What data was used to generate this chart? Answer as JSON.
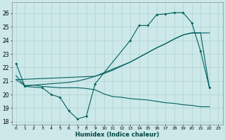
{
  "xlabel": "Humidex (Indice chaleur)",
  "bg_color": "#cce8e8",
  "grid_color": "#b0d0d0",
  "line_color": "#006060",
  "xlim": [
    -0.5,
    23.5
  ],
  "ylim": [
    17.8,
    26.8
  ],
  "yticks": [
    18,
    19,
    20,
    21,
    22,
    23,
    24,
    25,
    26
  ],
  "xticks": [
    0,
    1,
    2,
    3,
    4,
    5,
    6,
    7,
    8,
    9,
    10,
    11,
    12,
    13,
    14,
    15,
    16,
    17,
    18,
    19,
    20,
    21,
    22,
    23
  ],
  "line1_x": [
    0,
    1,
    3,
    4,
    5,
    6,
    7,
    8,
    9,
    13,
    14,
    15,
    16,
    17,
    18,
    19,
    20,
    21,
    22
  ],
  "line1_y": [
    22.3,
    20.6,
    20.5,
    20.0,
    19.8,
    18.8,
    18.2,
    18.4,
    20.8,
    24.0,
    25.1,
    25.1,
    25.9,
    25.95,
    26.05,
    26.05,
    25.3,
    23.2,
    20.5
  ],
  "line2_x": [
    0,
    1,
    2,
    3,
    4,
    5,
    6,
    7,
    8,
    9,
    10,
    11,
    12,
    13,
    14,
    15,
    16,
    17,
    18,
    19,
    20,
    21,
    22
  ],
  "line2_y": [
    21.1,
    20.65,
    20.7,
    20.75,
    20.8,
    20.85,
    20.9,
    21.0,
    21.15,
    21.35,
    21.55,
    21.8,
    22.1,
    22.4,
    22.75,
    23.1,
    23.45,
    23.75,
    24.1,
    24.4,
    24.55,
    24.55,
    24.55
  ],
  "line3_x": [
    0,
    1,
    2,
    3,
    4,
    5,
    6,
    7,
    8,
    9,
    10,
    11,
    12,
    13,
    14,
    15,
    16,
    17,
    18,
    19,
    20,
    21,
    22
  ],
  "line3_y": [
    21.4,
    20.65,
    20.7,
    20.6,
    20.55,
    20.5,
    20.5,
    20.5,
    20.45,
    20.35,
    20.05,
    19.85,
    19.8,
    19.7,
    19.65,
    19.6,
    19.5,
    19.4,
    19.35,
    19.25,
    19.2,
    19.1,
    19.1
  ],
  "line4_x": [
    0,
    9,
    13,
    14,
    15,
    16,
    17,
    18,
    19,
    20,
    21,
    22
  ],
  "line4_y": [
    21.1,
    21.35,
    22.4,
    22.75,
    23.1,
    23.45,
    23.75,
    24.1,
    24.4,
    24.55,
    24.55,
    20.5
  ]
}
